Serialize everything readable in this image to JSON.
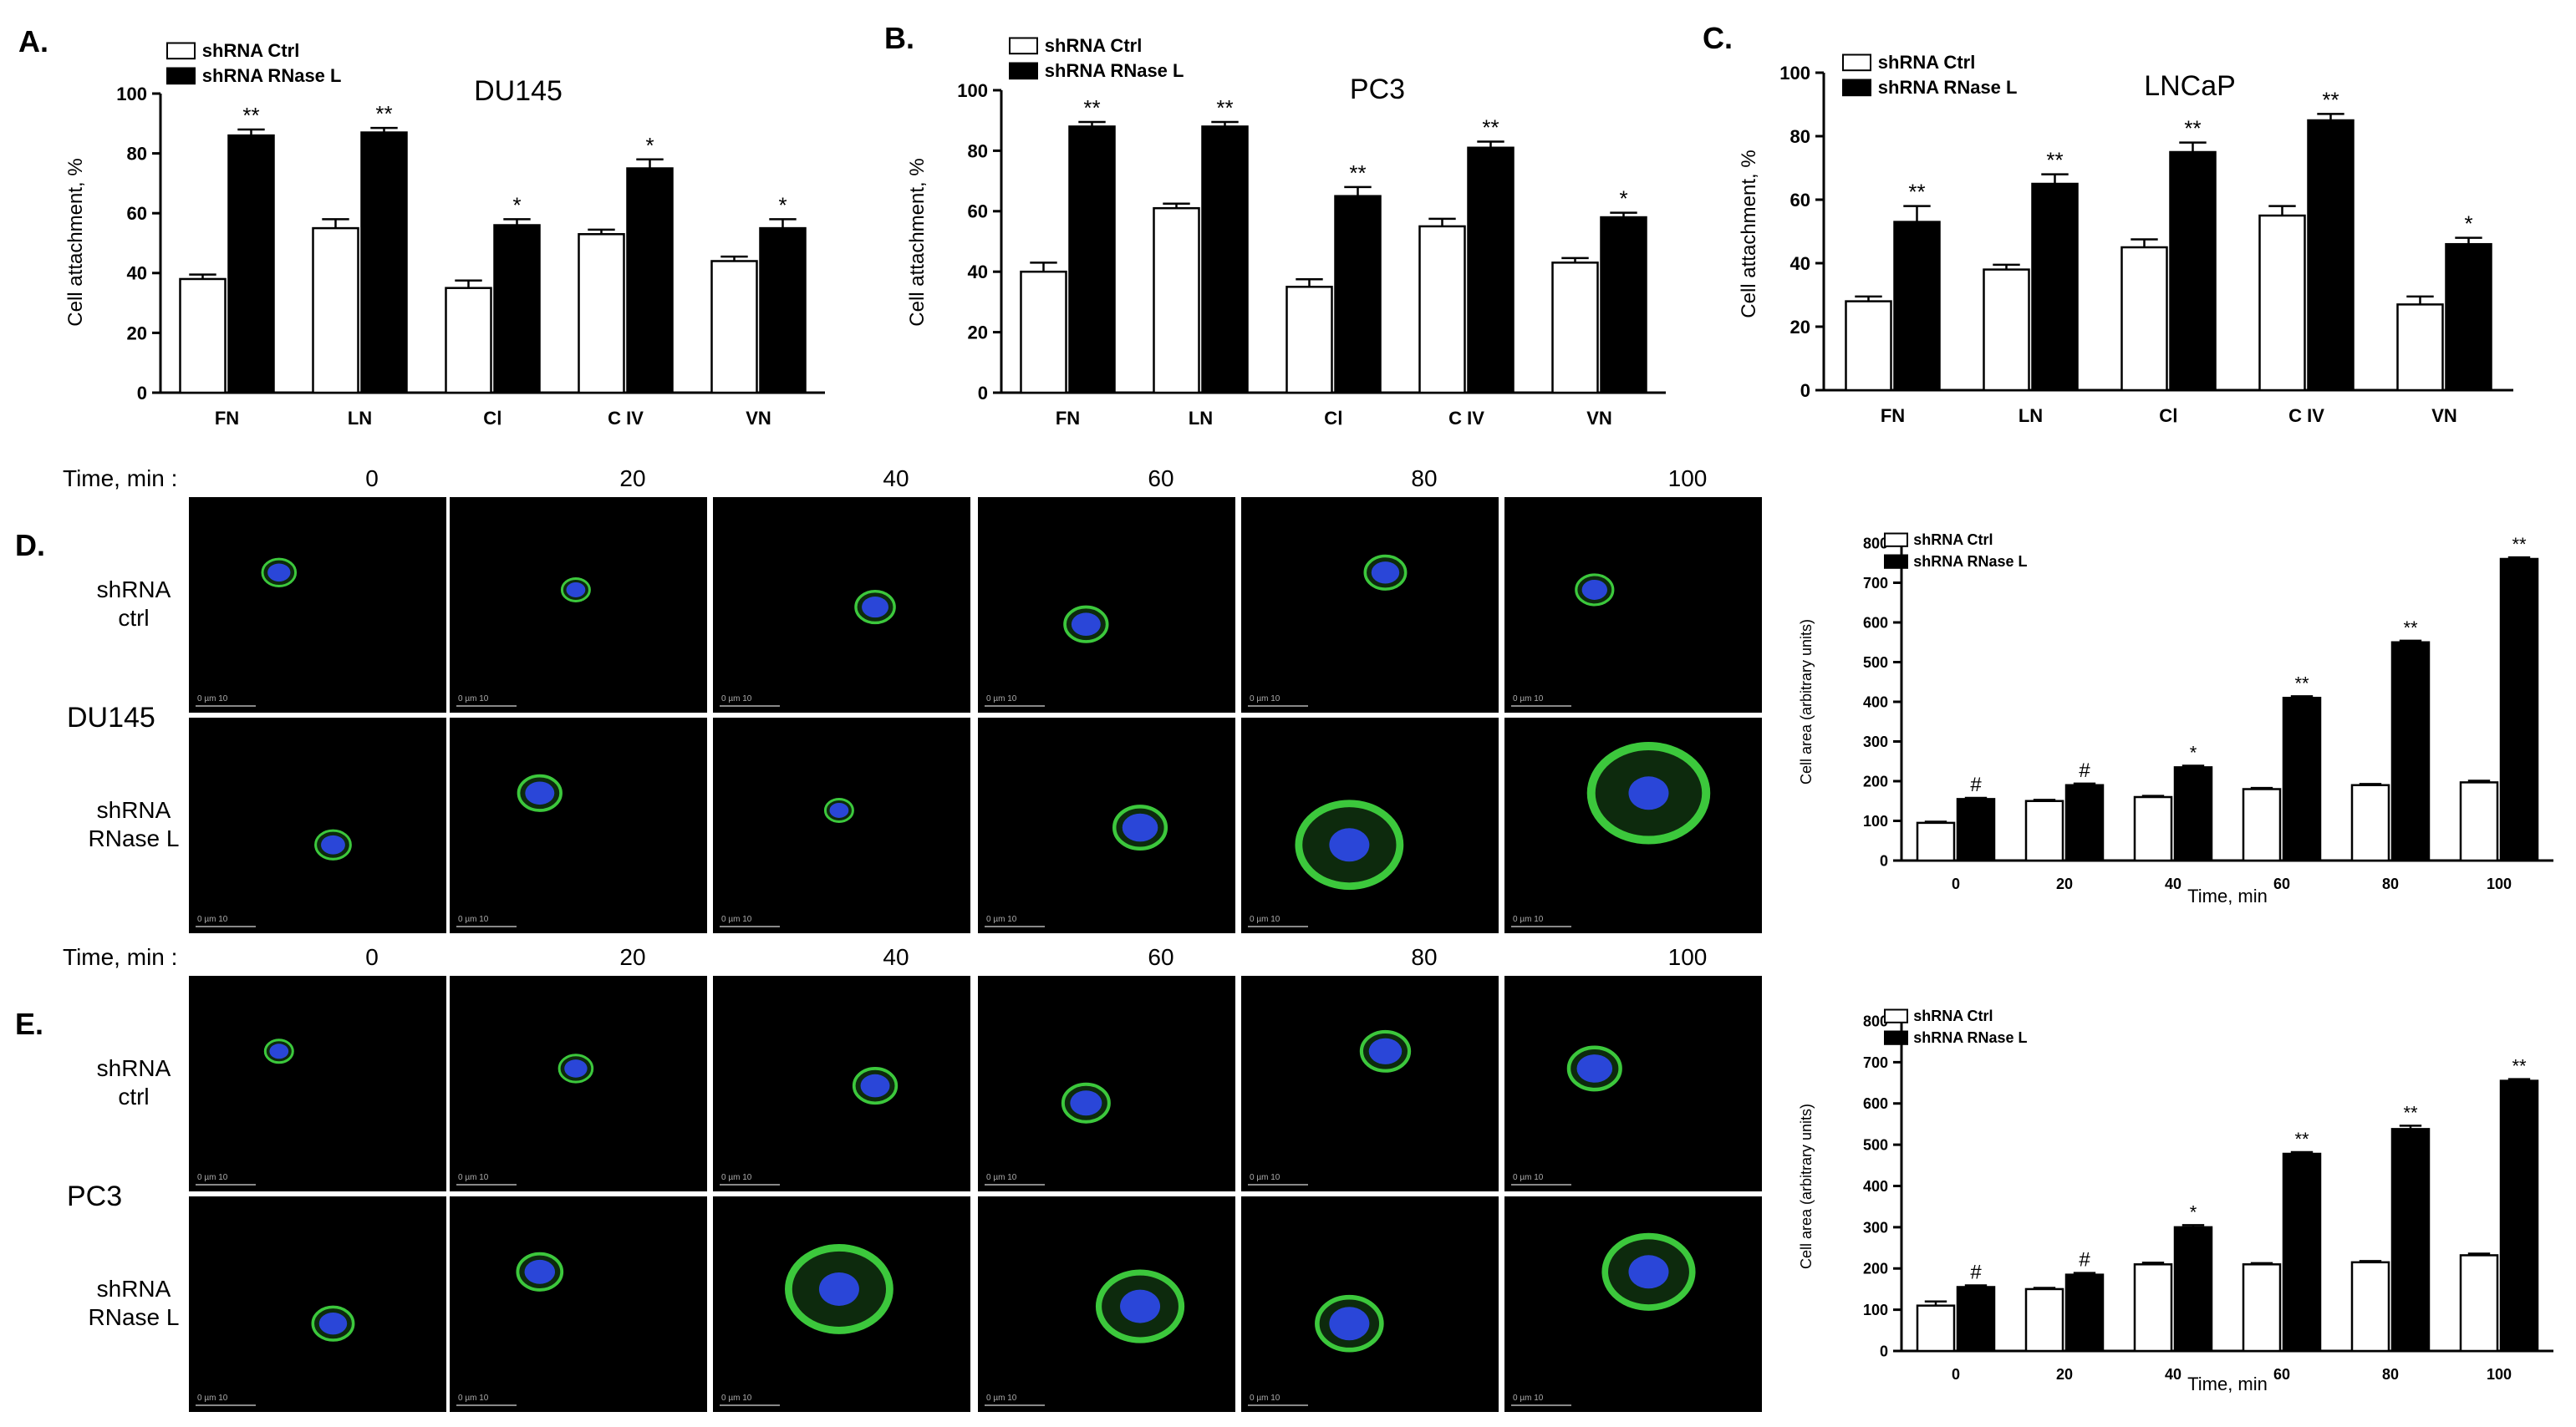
{
  "bar_charts": [
    {
      "panel_letter": "A.",
      "cell_line": "DU145",
      "ylabel": "Cell attachment, %",
      "yticks": [
        "0",
        "20",
        "40",
        "60",
        "80",
        "100"
      ],
      "legend": [
        "shRNA Ctrl",
        "shRNA RNase L"
      ],
      "categories": [
        "FN",
        "LN",
        "CⅠ",
        "C IV",
        "VN"
      ],
      "significance": [
        "**",
        "**",
        "*",
        "*",
        "*"
      ]
    },
    {
      "panel_letter": "B.",
      "cell_line": "PC3",
      "ylabel": "Cell attachment, %",
      "yticks": [
        "0",
        "20",
        "40",
        "60",
        "80",
        "100"
      ],
      "legend": [
        "shRNA Ctrl",
        "shRNA RNase L"
      ],
      "categories": [
        "FN",
        "LN",
        "CⅠ",
        "C IV",
        "VN"
      ],
      "significance": [
        "**",
        "**",
        "**",
        "**",
        "*"
      ]
    },
    {
      "panel_letter": "C.",
      "cell_line": "LNCaP",
      "ylabel": "Cell attachment, %",
      "yticks": [
        "0",
        "20",
        "40",
        "60",
        "80",
        "100"
      ],
      "legend": [
        "shRNA Ctrl",
        "shRNA RNase L"
      ],
      "categories": [
        "FN",
        "LN",
        "CⅠ",
        "C IV",
        "VN"
      ],
      "significance": [
        "**",
        "**",
        "**",
        "**",
        "*"
      ]
    },
    {
      "panel_letter": "",
      "cell_line": "",
      "ylabel": "Cell area (arbitrary units)",
      "xlabel": "Time, min",
      "yticks": [
        "0",
        "100",
        "200",
        "300",
        "400",
        "500",
        "600",
        "700",
        "800"
      ],
      "legend": [
        "shRNA Ctrl",
        "shRNA RNase L"
      ],
      "categories": [
        "0",
        "20",
        "40",
        "60",
        "80",
        "100"
      ],
      "significance": [
        "#",
        "#",
        "*",
        "**",
        "**",
        "**"
      ]
    },
    {
      "panel_letter": "",
      "cell_line": "",
      "ylabel": "Cell area (arbitrary units)",
      "xlabel": "Time, min",
      "yticks": [
        "0",
        "100",
        "200",
        "300",
        "400",
        "500",
        "600",
        "700",
        "800"
      ],
      "legend": [
        "shRNA Ctrl",
        "shRNA RNase L"
      ],
      "categories": [
        "0",
        "20",
        "40",
        "60",
        "80",
        "100"
      ],
      "significance": [
        "#",
        "#",
        "*",
        "**",
        "**",
        "**"
      ]
    }
  ],
  "chart_data": [
    {
      "type": "bar",
      "categories": [
        "FN",
        "LN",
        "CⅠ",
        "C IV",
        "VN"
      ],
      "series": [
        {
          "name": "shRNA Ctrl",
          "values": [
            38,
            55,
            35,
            53,
            44
          ],
          "errors": [
            1.5,
            3,
            2.5,
            1.5,
            1.5
          ],
          "color": "#ffffff"
        },
        {
          "name": "shRNA RNase L",
          "values": [
            86,
            87,
            56,
            75,
            55
          ],
          "errors": [
            2,
            1.5,
            2,
            3,
            3
          ],
          "color": "#000000"
        }
      ],
      "title": "DU145",
      "xlabel": "",
      "ylabel": "Cell attachment, %",
      "ylim": [
        0,
        100
      ]
    },
    {
      "type": "bar",
      "categories": [
        "FN",
        "LN",
        "CⅠ",
        "C IV",
        "VN"
      ],
      "series": [
        {
          "name": "shRNA Ctrl",
          "values": [
            40,
            61,
            35,
            55,
            43
          ],
          "errors": [
            3,
            1.5,
            2.5,
            2.5,
            1.5
          ],
          "color": "#ffffff"
        },
        {
          "name": "shRNA RNase L",
          "values": [
            88,
            88,
            65,
            81,
            58
          ],
          "errors": [
            1.5,
            1.5,
            3,
            2,
            1.5
          ],
          "color": "#000000"
        }
      ],
      "title": "PC3",
      "xlabel": "",
      "ylabel": "Cell attachment, %",
      "ylim": [
        0,
        100
      ]
    },
    {
      "type": "bar",
      "categories": [
        "FN",
        "LN",
        "CⅠ",
        "C IV",
        "VN"
      ],
      "series": [
        {
          "name": "shRNA Ctrl",
          "values": [
            28,
            38,
            45,
            55,
            27
          ],
          "errors": [
            1.5,
            1.5,
            2.5,
            3,
            2.5
          ],
          "color": "#ffffff"
        },
        {
          "name": "shRNA RNase L",
          "values": [
            53,
            65,
            75,
            85,
            46
          ],
          "errors": [
            5,
            3,
            3,
            2,
            2
          ],
          "color": "#000000"
        }
      ],
      "title": "LNCaP",
      "xlabel": "",
      "ylabel": "Cell attachment, %",
      "ylim": [
        0,
        100
      ]
    },
    {
      "type": "bar",
      "categories": [
        "0",
        "20",
        "40",
        "60",
        "80",
        "100"
      ],
      "series": [
        {
          "name": "shRNA Ctrl",
          "values": [
            95,
            150,
            160,
            180,
            190,
            197
          ],
          "errors": [
            3,
            3,
            3,
            3,
            3,
            4
          ],
          "color": "#ffffff"
        },
        {
          "name": "shRNA RNase L",
          "values": [
            155,
            190,
            235,
            410,
            550,
            760
          ],
          "errors": [
            3,
            4,
            4,
            4,
            4,
            4
          ],
          "color": "#000000"
        }
      ],
      "title": "",
      "xlabel": "Time, min",
      "ylabel": "Cell area (arbitrary units)",
      "ylim": [
        0,
        800
      ]
    },
    {
      "type": "bar",
      "categories": [
        "0",
        "20",
        "40",
        "60",
        "80",
        "100"
      ],
      "series": [
        {
          "name": "shRNA Ctrl",
          "values": [
            110,
            150,
            210,
            210,
            215,
            232
          ],
          "errors": [
            10,
            3,
            4,
            3,
            3,
            4
          ],
          "color": "#ffffff"
        },
        {
          "name": "shRNA RNase L",
          "values": [
            155,
            185,
            300,
            478,
            538,
            655
          ],
          "errors": [
            4,
            4,
            5,
            4,
            8,
            4
          ],
          "color": "#000000"
        }
      ],
      "title": "",
      "xlabel": "Time, min",
      "ylabel": "Cell area (arbitrary units)",
      "ylim": [
        0,
        800
      ]
    }
  ],
  "microscopy_panels": [
    {
      "panel_letter": "D.",
      "cell_line": "DU145",
      "time_label": "Time, min :",
      "time_points": [
        "0",
        "20",
        "40",
        "60",
        "80",
        "100"
      ],
      "row_labels": [
        [
          "shRNA",
          "ctrl"
        ],
        [
          "shRNA",
          "RNase L"
        ]
      ],
      "scale_text": "0    µm  10",
      "cell_sizes": [
        [
          36,
          30,
          42,
          46,
          44,
          40
        ],
        [
          38,
          46,
          30,
          56,
          110,
          125
        ]
      ],
      "cell_colors": {
        "membrane": "#3cc83c",
        "nucleus": "#2a46d8"
      }
    },
    {
      "panel_letter": "E.",
      "cell_line": "PC3",
      "time_label": "Time, min :",
      "time_points": [
        "0",
        "20",
        "40",
        "60",
        "80",
        "100"
      ],
      "row_labels": [
        [
          "shRNA",
          "ctrl"
        ],
        [
          "shRNA",
          "RNase L"
        ]
      ],
      "scale_text": "0    µm  10",
      "cell_sizes": [
        [
          30,
          36,
          46,
          50,
          52,
          56
        ],
        [
          44,
          48,
          110,
          90,
          70,
          95
        ]
      ],
      "cell_colors": {
        "membrane": "#3cc83c",
        "nucleus": "#2a46d8"
      }
    }
  ]
}
